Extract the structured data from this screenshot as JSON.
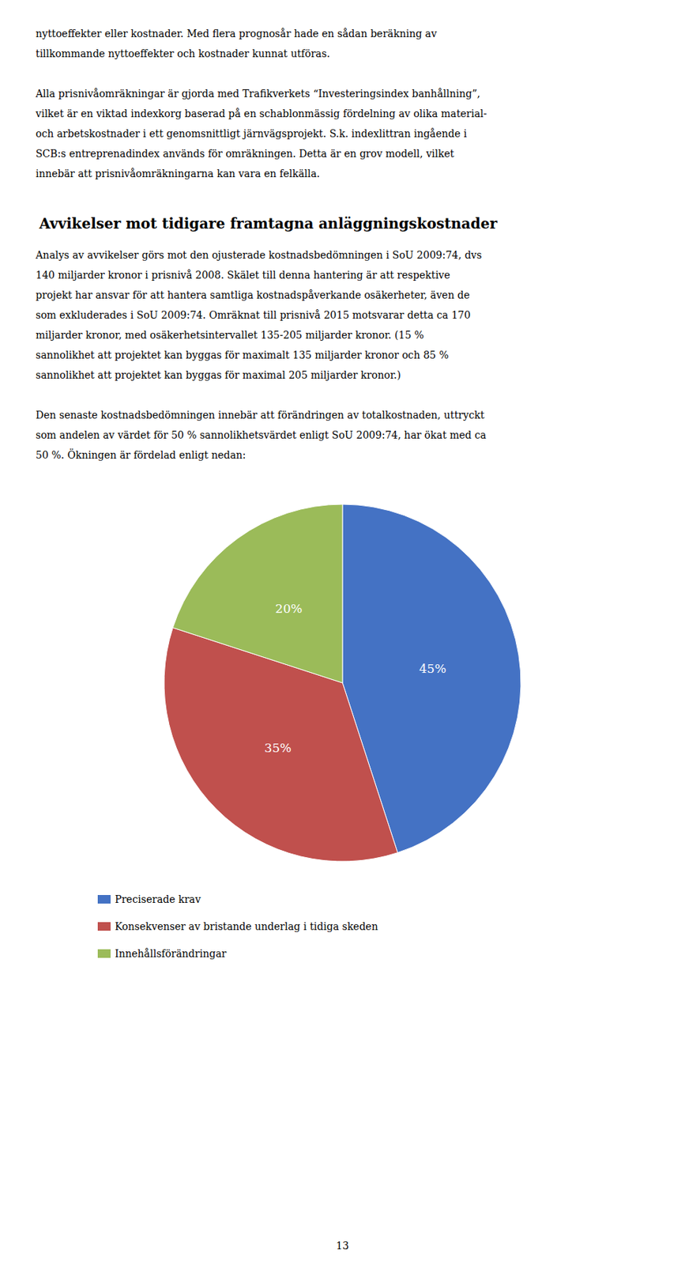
{
  "chart_data": {
    "type": "pie",
    "title": "Avvikelser mot tidigare framtagna anläggningskostnader",
    "categories": [
      "Preciserade krav",
      "Konsekvenser av bristande underlag i tidiga skeden",
      "Innehållsförändringar"
    ],
    "values": [
      45,
      35,
      20
    ],
    "value_labels": [
      "45%",
      "35%",
      "20%"
    ],
    "colors": [
      "#4472C4",
      "#C0504D",
      "#9BBB59"
    ],
    "data_labels": true,
    "legend": "bottom",
    "annotations": [
      [
        "nyttoeffekter eller kostnader. Med flera prognosår hade en sådan beräkning av",
        "tillkommande nyttoeffekter och kostnader kunnat utföras."
      ],
      [
        "Alla prisnivåomräkningar är gjorda med Trafikverkets “Investeringsindex banhållning”,",
        "vilket är en viktad indexkorg baserad på en schablonmässig fördelning av olika material-",
        "och arbetskostnader i ett genomsnittligt järnvägsprojekt. S.k. indexlittran ingående i",
        "SCB:s entreprenadindex används för omräkningen. Detta är en grov modell, vilket",
        "innebär att prisnivåomräkningarna kan vara en felkälla."
      ],
      [
        "Analys av avvikelser görs mot den ojusterade kostnadsbedömningen i SoU 2009:74, dvs",
        "140 miljarder kronor i prisnivå 2008. Skälet till denna hantering är att respektive",
        "projekt har ansvar för att hantera samtliga kostnadspåverkande osäkerheter, även de",
        "som exkluderades i SoU 2009:74. Omräknat till prisnivå 2015 motsvarar detta ca 170",
        "miljarder kronor, med osäkerhetsintervallet 135-205 miljarder kronor. (15 %",
        "sannolikhet att projektet kan byggas för maximalt 135 miljarder kronor och 85 %",
        "sannolikhet att projektet kan byggas för maximal 205 miljarder kronor.)"
      ],
      [
        "Den senaste kostnadsbedömningen innebär att förändringen av totalkostnaden, uttryckt",
        "som andelen av värdet för 50 % sannolikhetsvärdet enligt SoU 2009:74, har ökat med ca",
        "50 %. Ökningen är fördelad enligt nedan:"
      ],
      [
        "13"
      ]
    ]
  }
}
